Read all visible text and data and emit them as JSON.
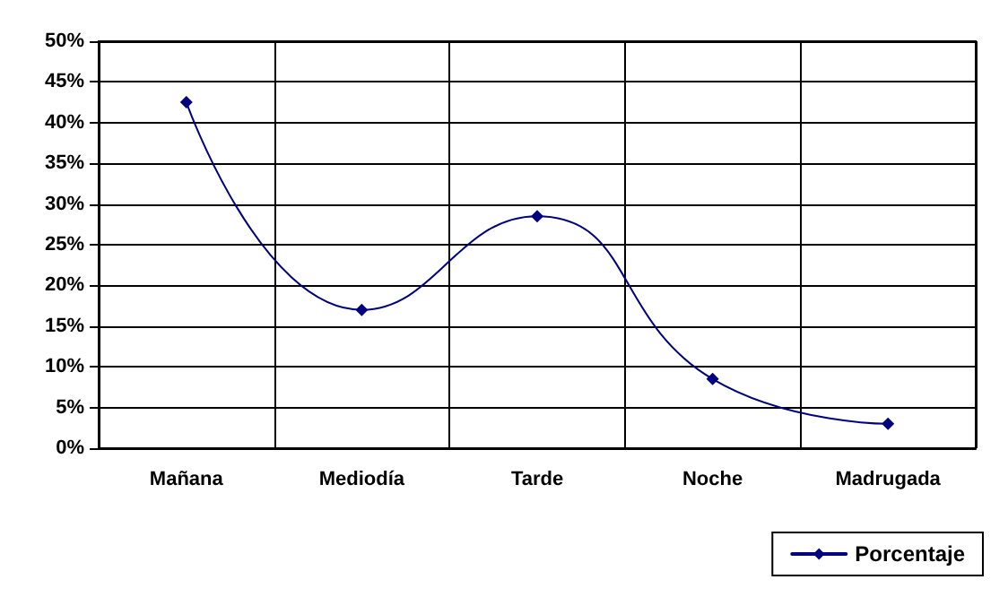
{
  "chart_data": {
    "type": "line",
    "categories": [
      "Mañana",
      "Mediodía",
      "Tarde",
      "Noche",
      "Madrugada"
    ],
    "series": [
      {
        "name": "Porcentaje",
        "color": "#000080",
        "values": [
          42.5,
          17,
          28.5,
          8.5,
          3
        ]
      }
    ],
    "ylim": [
      0,
      50
    ],
    "yticks": [
      {
        "value": 0,
        "label": "0%"
      },
      {
        "value": 5,
        "label": "5%"
      },
      {
        "value": 10,
        "label": "10%"
      },
      {
        "value": 15,
        "label": "15%"
      },
      {
        "value": 20,
        "label": "20%"
      },
      {
        "value": 25,
        "label": "25%"
      },
      {
        "value": 30,
        "label": "30%"
      },
      {
        "value": 35,
        "label": "35%"
      },
      {
        "value": 40,
        "label": "40%"
      },
      {
        "value": 45,
        "label": "45%"
      },
      {
        "value": 50,
        "label": "50%"
      }
    ],
    "grid": true,
    "legend": "bottom right",
    "marker": "diamond",
    "line_style": "solid"
  }
}
